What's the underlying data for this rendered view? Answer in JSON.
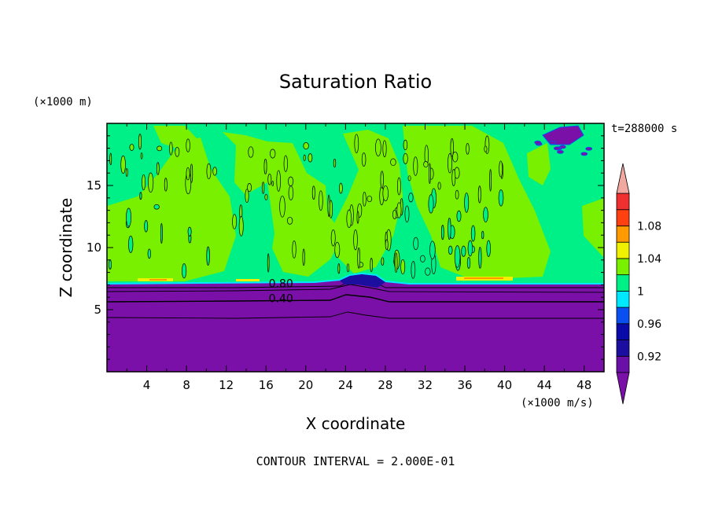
{
  "chart_data": {
    "type": "heatmap",
    "title": "Saturation Ratio",
    "xlabel": "X coordinate",
    "ylabel": "Z coordinate",
    "x_unit": "(×1000 m/s)",
    "y_unit": "(×1000 m)",
    "time_label": "t=288000 s",
    "footer": "CONTOUR INTERVAL = 2.000E-01",
    "xlim": [
      0,
      50
    ],
    "ylim": [
      0,
      20
    ],
    "x_ticks": [
      4,
      8,
      12,
      16,
      20,
      24,
      28,
      32,
      36,
      40,
      44,
      48
    ],
    "y_ticks": [
      5,
      10,
      15
    ],
    "contour_labels": [
      {
        "text": "0.80",
        "x": 17.5,
        "y": 6.8
      },
      {
        "text": "0.40",
        "x": 17.5,
        "y": 5.6
      }
    ],
    "colorbar": {
      "levels": [
        0.9,
        0.92,
        0.94,
        0.96,
        0.98,
        1.0,
        1.02,
        1.04,
        1.06,
        1.08,
        1.1
      ],
      "tick_labels": [
        {
          "text": "0.92",
          "value": 0.92
        },
        {
          "text": "0.96",
          "value": 0.96
        },
        {
          "text": "1",
          "value": 1.0
        },
        {
          "text": "1.04",
          "value": 1.04
        },
        {
          "text": "1.08",
          "value": 1.08
        }
      ],
      "colors": [
        "#6a0fa8",
        "#1c0fa0",
        "#0a0aaa",
        "#0a50f0",
        "#00e8ff",
        "#00f088",
        "#78f000",
        "#f0f000",
        "#ff9a00",
        "#ff4010",
        "#f03030"
      ],
      "under_color": "#7a10a8",
      "over_color": "#f0a8a0"
    }
  }
}
